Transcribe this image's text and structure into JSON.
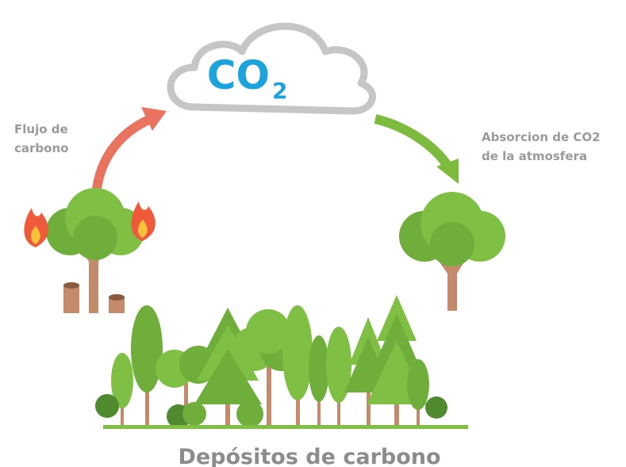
{
  "cloud": {
    "label": "CO",
    "subscript": "2"
  },
  "left_label": {
    "lines": [
      "Flujo de",
      "carbono"
    ]
  },
  "right_label": {
    "lines": [
      "Absorcion de CO2",
      "de la atmosfera"
    ]
  },
  "footer": "Depósitos de carbono"
}
